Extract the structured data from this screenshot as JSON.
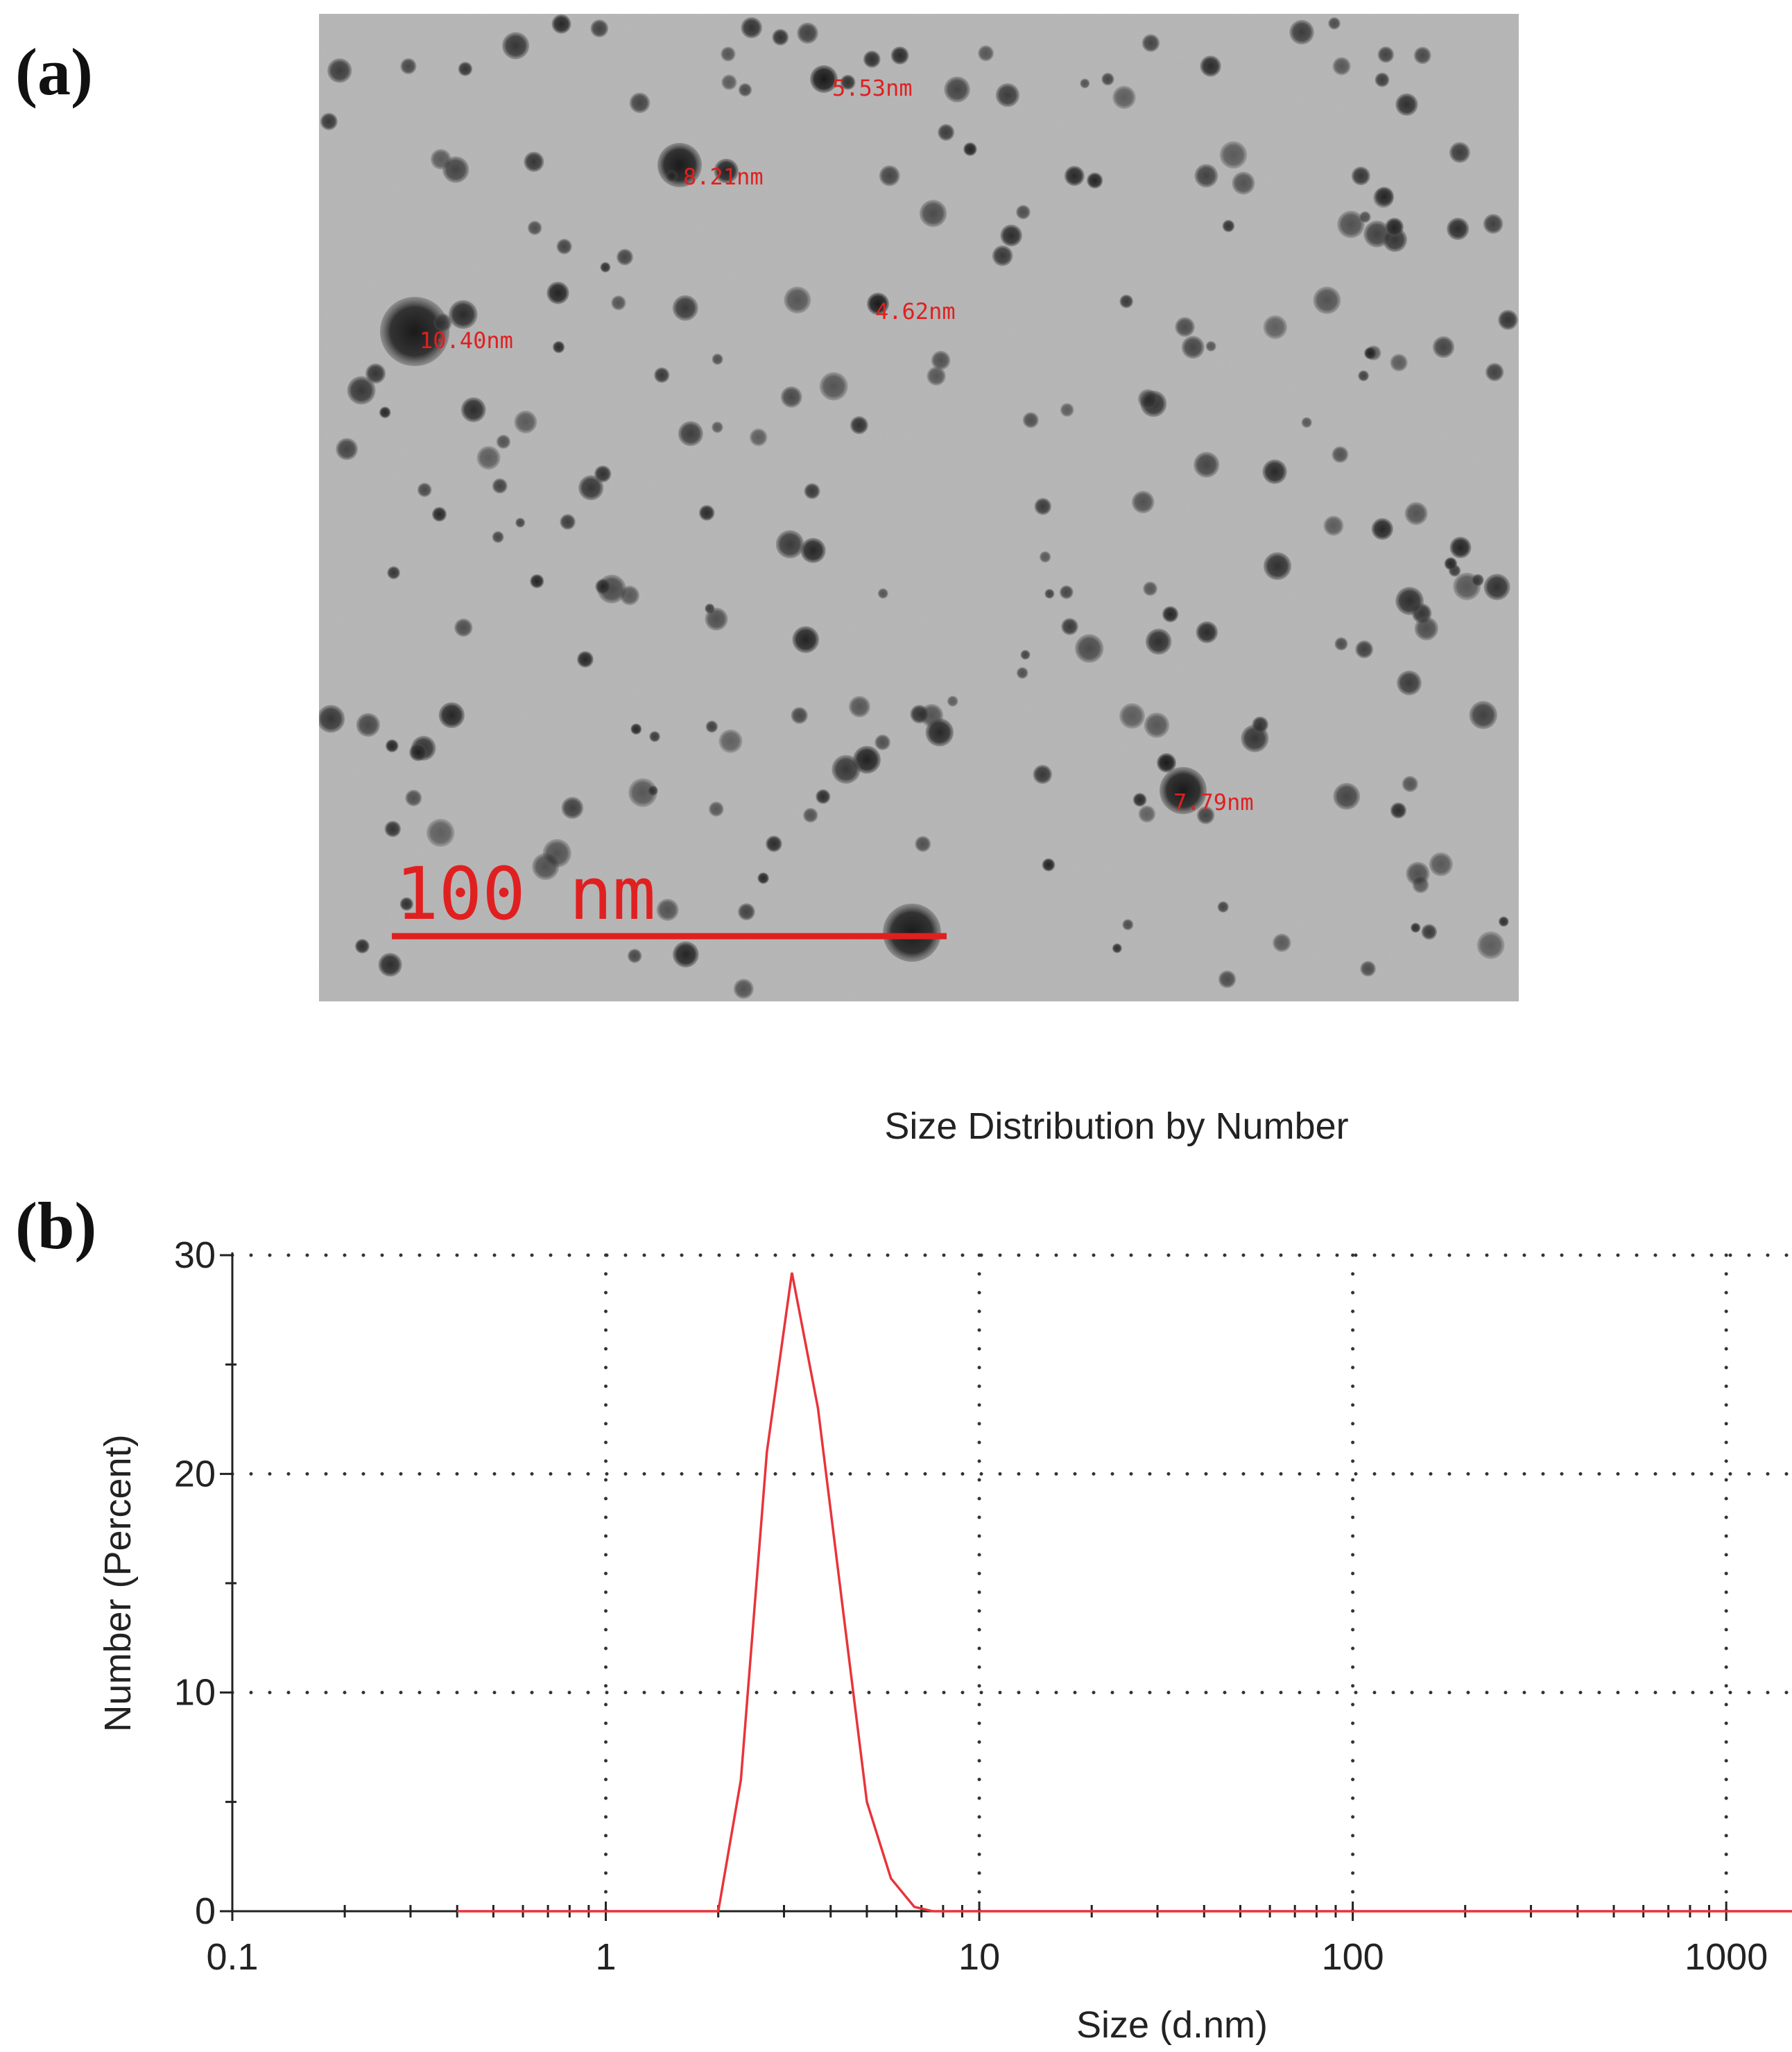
{
  "panel_a": {
    "label": "(a)",
    "measurements": [
      "5.53nm",
      "8.21nm",
      "4.62nm",
      "10.40nm",
      "7.79nm"
    ],
    "scale_bar_label": "100 nm",
    "annotation_color": "#e02020"
  },
  "panel_b": {
    "label": "(b)"
  },
  "chart_data": {
    "type": "line",
    "title": "Size Distribution by Number",
    "xlabel": "Size (d.nm)",
    "ylabel": "Number (Percent)",
    "x_scale": "log",
    "xlim": [
      0.1,
      1500
    ],
    "ylim": [
      0,
      30
    ],
    "x_ticks": [
      0.1,
      1,
      10,
      100,
      1000
    ],
    "x_tick_labels": [
      "0.1",
      "1",
      "10",
      "100",
      "1000"
    ],
    "y_ticks": [
      0,
      10,
      20,
      30
    ],
    "y_tick_labels": [
      "0",
      "10",
      "20",
      "30"
    ],
    "grid": true,
    "legend": "none",
    "series_color": "#e8343a",
    "x": [
      0.4,
      1.0,
      2.0,
      2.3,
      2.7,
      3.15,
      3.7,
      4.3,
      5.0,
      5.8,
      6.7,
      7.5,
      10,
      100,
      1500
    ],
    "y": [
      0,
      0,
      0,
      6,
      21,
      29.2,
      23,
      14,
      5,
      1.5,
      0.2,
      0,
      0,
      0,
      0
    ]
  }
}
